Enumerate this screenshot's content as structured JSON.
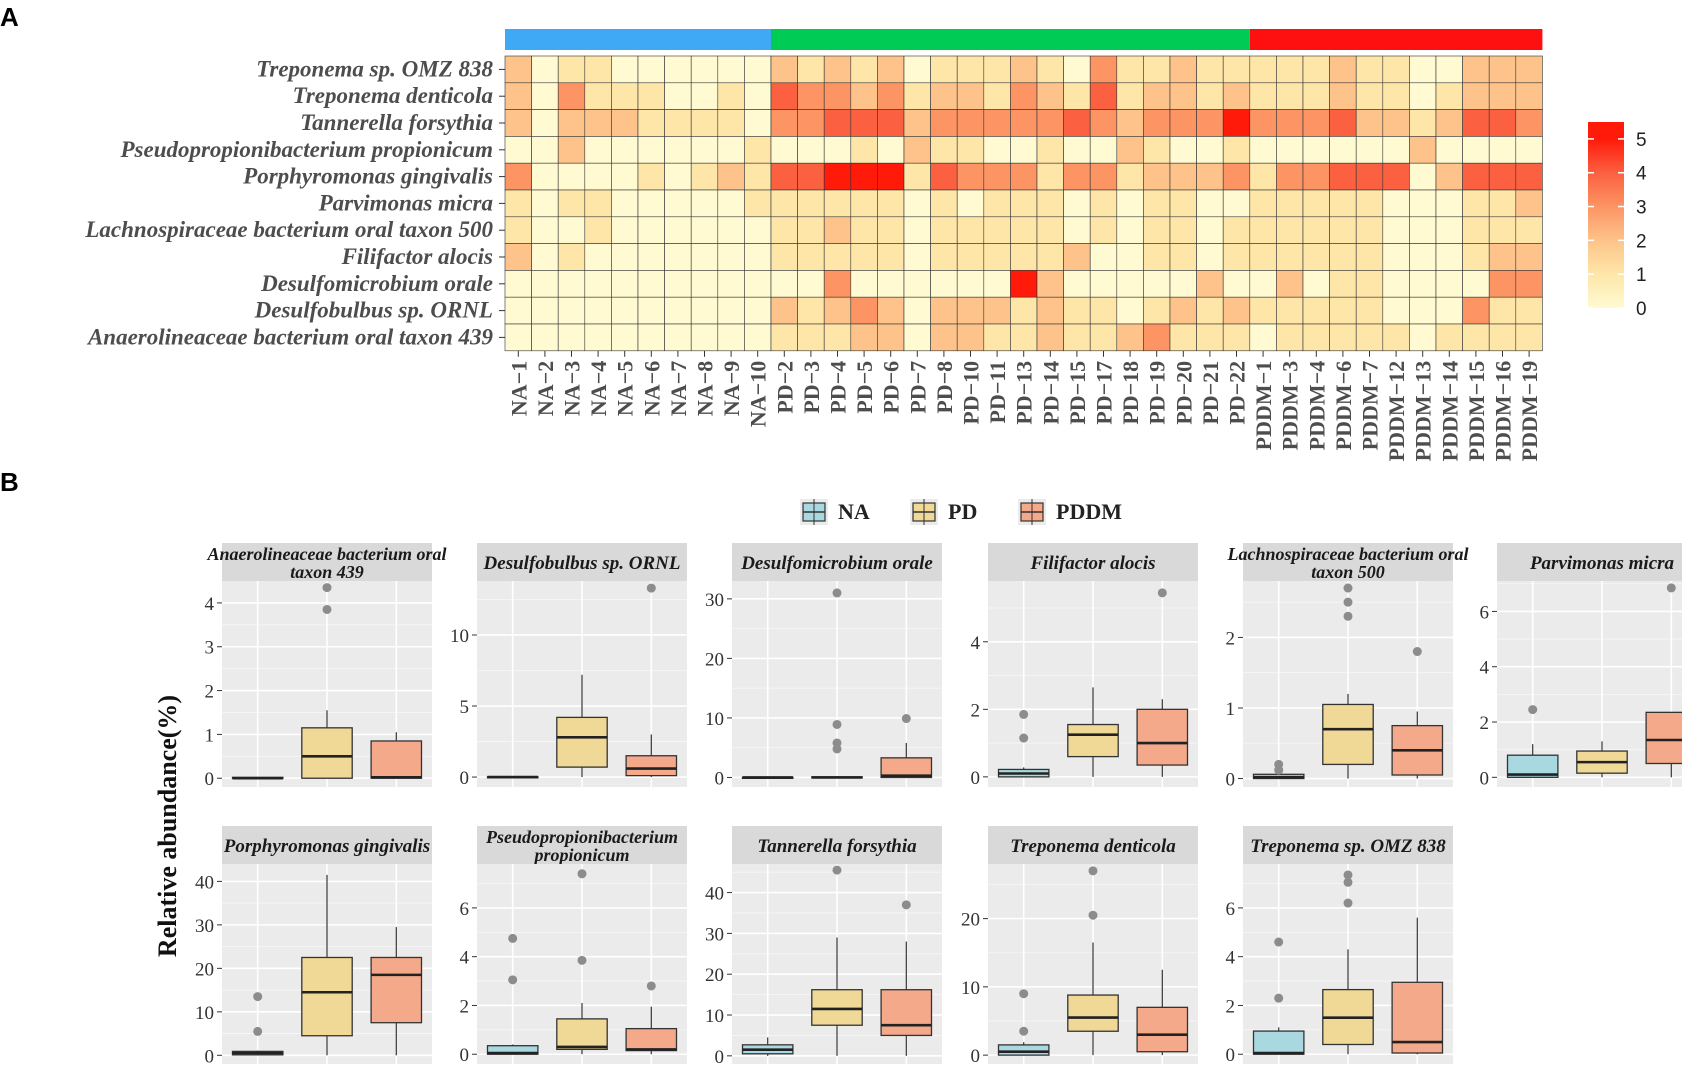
{
  "panels": {
    "a_label": "A",
    "b_label": "B"
  },
  "chart_data": [
    {
      "type": "heatmap",
      "title": "",
      "rows": [
        "Treponema sp. OMZ 838",
        "Treponema denticola",
        "Tannerella forsythia",
        "Pseudopropionibacterium propionicum",
        "Porphyromonas gingivalis",
        "Parvimonas micra",
        "Lachnospiraceae bacterium oral taxon 500",
        "Filifactor alocis",
        "Desulfomicrobium orale",
        "Desulfobulbus sp. ORNL",
        "Anaerolineaceae bacterium oral taxon 439"
      ],
      "columns": [
        "NA−1",
        "NA−2",
        "NA−3",
        "NA−4",
        "NA−5",
        "NA−6",
        "NA−7",
        "NA−8",
        "NA−9",
        "NA−10",
        "PD−2",
        "PD−3",
        "PD−4",
        "PD−5",
        "PD−6",
        "PD−7",
        "PD−8",
        "PD−10",
        "PD−11",
        "PD−13",
        "PD−14",
        "PD−15",
        "PD−17",
        "PD−18",
        "PD−19",
        "PD−20",
        "PD−21",
        "PD−22",
        "PDDM−1",
        "PDDM−3",
        "PDDM−4",
        "PDDM−6",
        "PDDM−7",
        "PDDM−12",
        "PDDM−13",
        "PDDM−14",
        "PDDM−15",
        "PDDM−16",
        "PDDM−19"
      ],
      "groups": [
        {
          "name": "NA",
          "count": 10,
          "color": "#3fa9f5"
        },
        {
          "name": "PD",
          "count": 18,
          "color": "#00cc55"
        },
        {
          "name": "PDDM",
          "count": 11,
          "color": "#ff1010"
        }
      ],
      "values": [
        [
          2,
          0,
          1,
          1,
          0,
          0,
          0,
          0,
          0,
          0,
          2,
          1,
          2,
          1,
          2,
          0,
          1,
          1,
          1,
          2,
          1,
          0,
          3,
          1,
          1,
          2,
          1,
          1,
          1,
          1,
          1,
          2,
          1,
          1,
          0,
          0,
          2,
          2,
          2
        ],
        [
          2,
          0,
          3,
          1,
          1,
          1,
          0,
          0,
          1,
          0,
          4,
          3,
          3,
          2,
          3,
          1,
          2,
          2,
          1,
          3,
          2,
          1,
          4,
          1,
          2,
          2,
          1,
          2,
          1,
          1,
          1,
          2,
          1,
          1,
          0,
          1,
          2,
          2,
          2
        ],
        [
          2,
          0,
          2,
          2,
          2,
          1,
          1,
          1,
          1,
          0,
          3,
          3,
          4,
          4,
          4,
          2,
          3,
          3,
          3,
          3,
          3,
          4,
          3,
          2,
          3,
          3,
          3,
          5,
          3,
          3,
          3,
          4,
          2,
          2,
          1,
          2,
          4,
          4,
          3
        ],
        [
          0,
          0,
          2,
          0,
          0,
          0,
          0,
          0,
          0,
          1,
          0,
          0,
          0,
          1,
          0,
          2,
          1,
          1,
          0,
          0,
          1,
          0,
          0,
          2,
          1,
          0,
          0,
          1,
          0,
          0,
          0,
          0,
          0,
          0,
          2,
          0,
          0,
          0,
          0
        ],
        [
          3,
          0,
          0,
          0,
          0,
          1,
          0,
          1,
          2,
          1,
          4,
          4,
          5,
          5,
          5,
          1,
          4,
          3,
          3,
          3,
          1,
          3,
          3,
          1,
          2,
          2,
          2,
          3,
          1,
          3,
          3,
          4,
          4,
          4,
          0,
          2,
          4,
          4,
          4
        ],
        [
          1,
          0,
          1,
          1,
          0,
          0,
          0,
          0,
          0,
          1,
          1,
          1,
          1,
          1,
          1,
          0,
          1,
          0,
          1,
          1,
          1,
          0,
          1,
          0,
          1,
          1,
          0,
          0,
          1,
          1,
          1,
          1,
          1,
          0,
          0,
          0,
          1,
          1,
          2
        ],
        [
          1,
          0,
          0,
          1,
          0,
          0,
          0,
          0,
          0,
          0,
          1,
          1,
          2,
          1,
          1,
          0,
          1,
          1,
          1,
          1,
          1,
          0,
          1,
          0,
          1,
          1,
          0,
          1,
          1,
          1,
          1,
          1,
          1,
          0,
          0,
          0,
          1,
          1,
          1
        ],
        [
          2,
          0,
          1,
          0,
          0,
          0,
          0,
          0,
          0,
          0,
          1,
          1,
          1,
          1,
          1,
          0,
          1,
          1,
          1,
          1,
          1,
          2,
          0,
          0,
          1,
          1,
          0,
          1,
          1,
          1,
          1,
          1,
          1,
          0,
          0,
          0,
          1,
          2,
          2
        ],
        [
          0,
          0,
          0,
          0,
          0,
          0,
          0,
          0,
          0,
          0,
          0,
          0,
          3,
          0,
          0,
          0,
          0,
          0,
          0,
          5,
          2,
          0,
          0,
          0,
          0,
          0,
          2,
          0,
          0,
          2,
          0,
          1,
          1,
          0,
          0,
          0,
          0,
          3,
          3
        ],
        [
          0,
          0,
          0,
          0,
          0,
          0,
          0,
          0,
          0,
          0,
          2,
          1,
          2,
          3,
          2,
          0,
          2,
          2,
          2,
          1,
          2,
          1,
          1,
          0,
          1,
          2,
          1,
          2,
          1,
          1,
          1,
          1,
          1,
          0,
          0,
          0,
          3,
          1,
          1
        ],
        [
          0,
          0,
          0,
          0,
          0,
          0,
          0,
          0,
          0,
          0,
          1,
          1,
          1,
          2,
          2,
          0,
          2,
          2,
          1,
          1,
          2,
          1,
          1,
          2,
          3,
          1,
          1,
          1,
          0,
          1,
          1,
          1,
          1,
          1,
          0,
          1,
          1,
          1,
          1
        ]
      ],
      "color_scale": {
        "min": 0,
        "max": 5.5,
        "low": "#fffad2",
        "high": "#ff1a0a"
      },
      "legend": {
        "ticks": [
          5,
          4,
          3,
          2,
          1,
          0
        ],
        "position": "right"
      }
    },
    {
      "type": "box",
      "ylabel": "Relative abundance(%)",
      "legend": [
        {
          "name": "NA",
          "color": "#a9d8e0"
        },
        {
          "name": "PD",
          "color": "#f0d896"
        },
        {
          "name": "PDDM",
          "color": "#f4a98a"
        }
      ],
      "facets": [
        {
          "title": "Anaerolineaceae bacterium oral taxon 439",
          "ylim": [
            -0.2,
            4.5
          ],
          "ticks": [
            0,
            1,
            2,
            3,
            4
          ],
          "boxes": [
            {
              "min": 0,
              "q1": 0,
              "med": 0,
              "q3": 0.02,
              "max": 0.03,
              "outliers": []
            },
            {
              "min": 0,
              "q1": 0,
              "med": 0.5,
              "q3": 1.15,
              "max": 1.55,
              "outliers": [
                3.85,
                4.35
              ]
            },
            {
              "min": 0,
              "q1": 0,
              "med": 0.02,
              "q3": 0.85,
              "max": 1.05,
              "outliers": []
            }
          ]
        },
        {
          "title": "Desulfobulbus sp. ORNL",
          "ylim": [
            -0.7,
            13.8
          ],
          "ticks": [
            0,
            5,
            10
          ],
          "boxes": [
            {
              "min": 0,
              "q1": 0,
              "med": 0,
              "q3": 0.02,
              "max": 0.03,
              "outliers": []
            },
            {
              "min": 0,
              "q1": 0.7,
              "med": 2.8,
              "q3": 4.2,
              "max": 7.2,
              "outliers": []
            },
            {
              "min": 0,
              "q1": 0.1,
              "med": 0.6,
              "q3": 1.5,
              "max": 3.0,
              "outliers": [
                13.3
              ]
            }
          ]
        },
        {
          "title": "Desulfomicrobium orale",
          "ylim": [
            -1.6,
            33
          ],
          "ticks": [
            0,
            10,
            20,
            30
          ],
          "boxes": [
            {
              "min": 0,
              "q1": 0,
              "med": 0,
              "q3": 0.02,
              "max": 0.03,
              "outliers": []
            },
            {
              "min": 0,
              "q1": 0,
              "med": 0,
              "q3": 0.1,
              "max": 0.2,
              "outliers": [
                4.8,
                5.8,
                8.9,
                31
              ]
            },
            {
              "min": 0,
              "q1": 0,
              "med": 0.3,
              "q3": 3.3,
              "max": 5.8,
              "outliers": [
                9.9
              ]
            }
          ]
        },
        {
          "title": "Filifactor alocis",
          "ylim": [
            -0.3,
            5.8
          ],
          "ticks": [
            0,
            2,
            4
          ],
          "boxes": [
            {
              "min": 0,
              "q1": 0,
              "med": 0.1,
              "q3": 0.22,
              "max": 0.28,
              "outliers": [
                1.15,
                1.85
              ]
            },
            {
              "min": 0,
              "q1": 0.6,
              "med": 1.25,
              "q3": 1.55,
              "max": 2.65,
              "outliers": []
            },
            {
              "min": 0,
              "q1": 0.35,
              "med": 1.0,
              "q3": 2.0,
              "max": 2.3,
              "outliers": [
                5.45
              ]
            }
          ]
        },
        {
          "title": "Lachnospiraceae bacterium oral taxon 500",
          "ylim": [
            -0.12,
            2.8
          ],
          "ticks": [
            0,
            1,
            2
          ],
          "boxes": [
            {
              "min": 0,
              "q1": 0,
              "med": 0.02,
              "q3": 0.06,
              "max": 0.1,
              "outliers": [
                0.12,
                0.2
              ]
            },
            {
              "min": 0,
              "q1": 0.2,
              "med": 0.7,
              "q3": 1.05,
              "max": 1.2,
              "outliers": [
                2.3,
                2.5,
                2.7
              ]
            },
            {
              "min": 0,
              "q1": 0.05,
              "med": 0.4,
              "q3": 0.75,
              "max": 0.95,
              "outliers": [
                1.8
              ]
            }
          ]
        },
        {
          "title": "Parvimonas micra",
          "ylim": [
            -0.35,
            7.1
          ],
          "ticks": [
            0,
            2,
            4,
            6
          ],
          "boxes": [
            {
              "min": 0,
              "q1": 0,
              "med": 0.1,
              "q3": 0.8,
              "max": 1.2,
              "outliers": [
                2.45
              ]
            },
            {
              "min": 0,
              "q1": 0.15,
              "med": 0.55,
              "q3": 0.95,
              "max": 1.3,
              "outliers": []
            },
            {
              "min": 0,
              "q1": 0.5,
              "med": 1.35,
              "q3": 2.35,
              "max": 2.35,
              "outliers": [
                6.85
              ]
            }
          ]
        },
        {
          "title": "Porphyromonas gingivalis",
          "ylim": [
            -2,
            44
          ],
          "ticks": [
            0,
            10,
            20,
            30,
            40
          ],
          "boxes": [
            {
              "min": 0,
              "q1": 0.1,
              "med": 0.5,
              "q3": 0.9,
              "max": 1.1,
              "outliers": [
                5.5,
                13.5
              ]
            },
            {
              "min": 0,
              "q1": 4.5,
              "med": 14.5,
              "q3": 22.5,
              "max": 41.5,
              "outliers": []
            },
            {
              "min": 0,
              "q1": 7.5,
              "med": 18.5,
              "q3": 22.5,
              "max": 29.5,
              "outliers": []
            }
          ]
        },
        {
          "title": "Pseudopropionibacterium propionicum",
          "ylim": [
            -0.4,
            7.8
          ],
          "ticks": [
            0,
            2,
            4,
            6
          ],
          "boxes": [
            {
              "min": 0,
              "q1": 0,
              "med": 0.05,
              "q3": 0.35,
              "max": 0.4,
              "outliers": [
                3.05,
                4.75
              ]
            },
            {
              "min": 0,
              "q1": 0.2,
              "med": 0.3,
              "q3": 1.45,
              "max": 2.1,
              "outliers": [
                3.85,
                7.4
              ]
            },
            {
              "min": 0,
              "q1": 0.15,
              "med": 0.2,
              "q3": 1.05,
              "max": 1.95,
              "outliers": [
                2.8
              ]
            }
          ]
        },
        {
          "title": "Tannerella forsythia",
          "ylim": [
            -2,
            47
          ],
          "ticks": [
            0,
            10,
            20,
            30,
            40
          ],
          "boxes": [
            {
              "min": 0,
              "q1": 0.5,
              "med": 1.5,
              "q3": 2.7,
              "max": 4.5,
              "outliers": []
            },
            {
              "min": 0,
              "q1": 7.5,
              "med": 11.5,
              "q3": 16.2,
              "max": 29,
              "outliers": [
                45.5
              ]
            },
            {
              "min": 0,
              "q1": 5.0,
              "med": 7.5,
              "q3": 16.2,
              "max": 28,
              "outliers": [
                37
              ]
            }
          ]
        },
        {
          "title": "Treponema denticola",
          "ylim": [
            -1.3,
            28
          ],
          "ticks": [
            0,
            10,
            20
          ],
          "boxes": [
            {
              "min": 0,
              "q1": 0,
              "med": 0.5,
              "q3": 1.5,
              "max": 1.9,
              "outliers": [
                3.5,
                9
              ]
            },
            {
              "min": 0,
              "q1": 3.5,
              "med": 5.5,
              "q3": 8.8,
              "max": 16.5,
              "outliers": [
                20.5,
                27
              ]
            },
            {
              "min": 0,
              "q1": 0.5,
              "med": 3,
              "q3": 7,
              "max": 12.5,
              "outliers": []
            }
          ]
        },
        {
          "title": "Treponema sp. OMZ 838",
          "ylim": [
            -0.4,
            7.8
          ],
          "ticks": [
            0,
            2,
            4,
            6
          ],
          "boxes": [
            {
              "min": 0,
              "q1": 0,
              "med": 0.05,
              "q3": 0.95,
              "max": 1.1,
              "outliers": [
                2.3,
                4.6
              ]
            },
            {
              "min": 0,
              "q1": 0.4,
              "med": 1.5,
              "q3": 2.65,
              "max": 4.3,
              "outliers": [
                6.2,
                7.05,
                7.35
              ]
            },
            {
              "min": 0,
              "q1": 0.05,
              "med": 0.5,
              "q3": 2.95,
              "max": 5.6,
              "outliers": []
            }
          ]
        }
      ]
    }
  ]
}
